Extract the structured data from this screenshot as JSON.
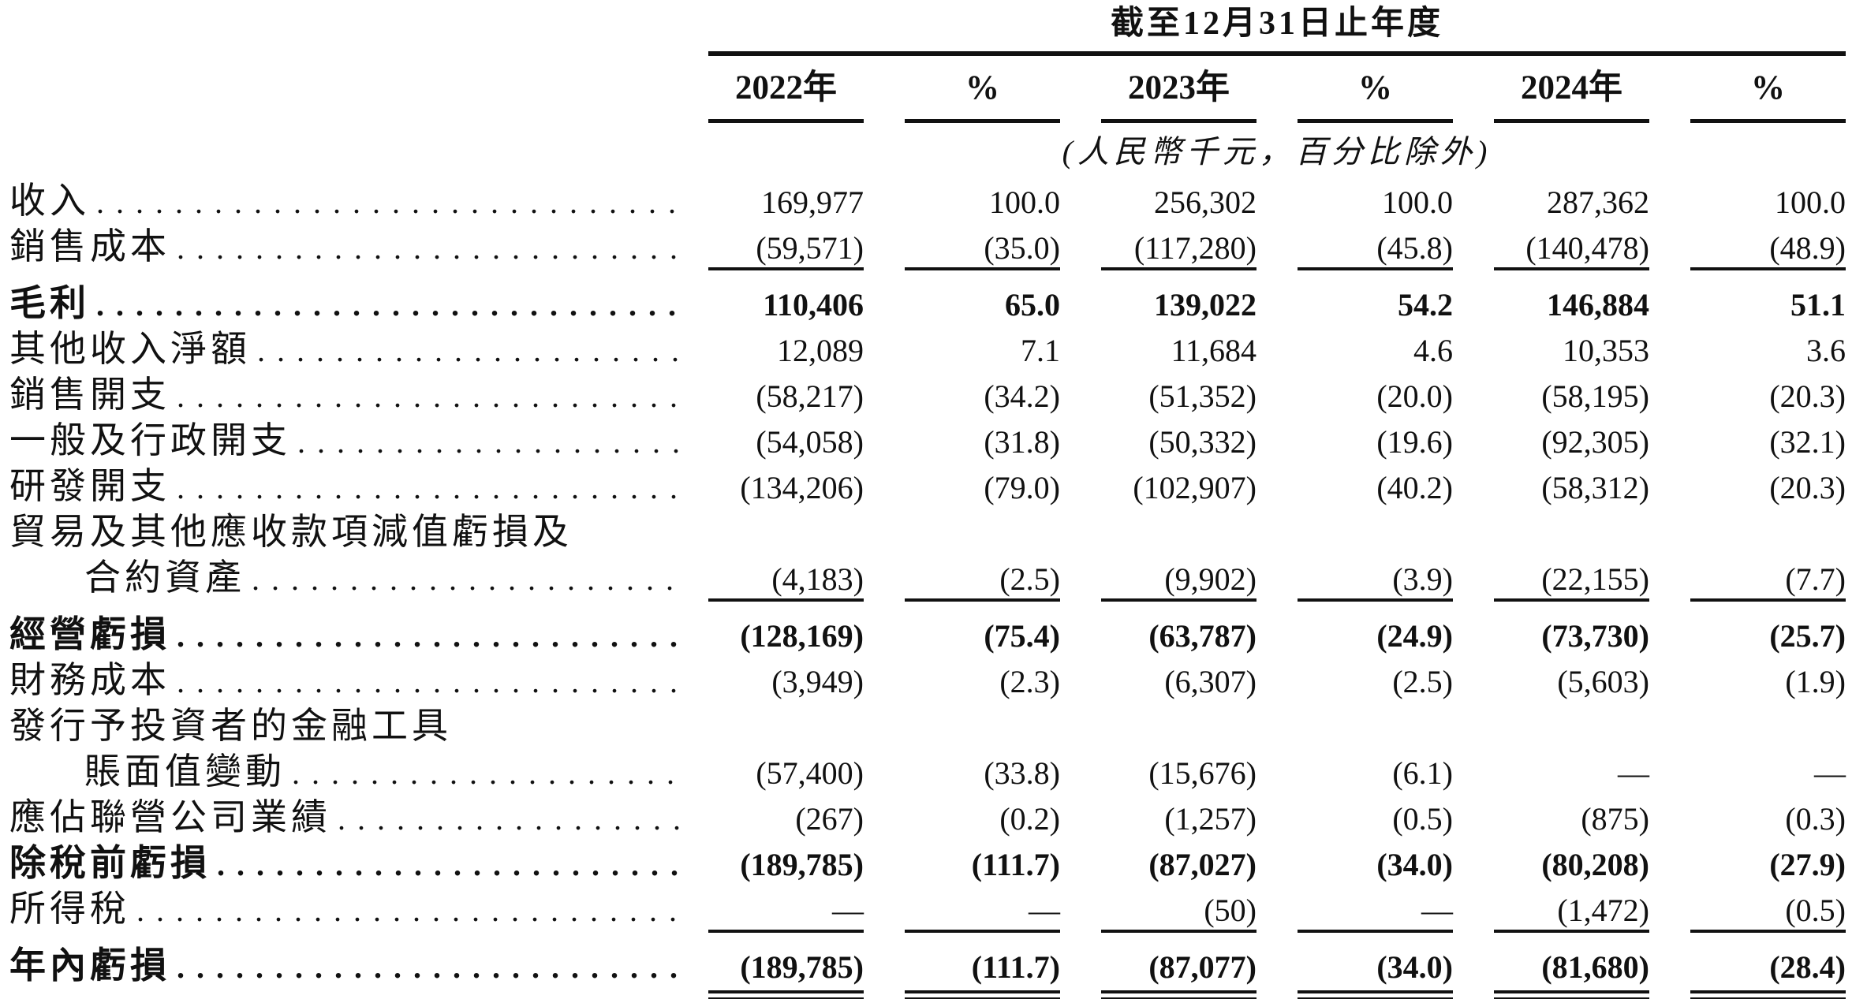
{
  "table": {
    "period_header": "截至12月31日止年度",
    "unit_note": "(人民幣千元，百分比除外)",
    "columns": [
      "2022年",
      "%",
      "2023年",
      "%",
      "2024年",
      "%"
    ],
    "rows": [
      {
        "label": "收入",
        "values": [
          "169,977",
          "100.0",
          "256,302",
          "100.0",
          "287,362",
          "100.0"
        ]
      },
      {
        "label": "銷售成本",
        "values": [
          "(59,571)",
          "(35.0)",
          "(117,280)",
          "(45.8)",
          "(140,478)",
          "(48.9)"
        ],
        "underline": true
      },
      {
        "label": "毛利",
        "bold": true,
        "space_before": true,
        "values": [
          "110,406",
          "65.0",
          "139,022",
          "54.2",
          "146,884",
          "51.1"
        ]
      },
      {
        "label": "其他收入淨額",
        "values": [
          "12,089",
          "7.1",
          "11,684",
          "4.6",
          "10,353",
          "3.6"
        ]
      },
      {
        "label": "銷售開支",
        "values": [
          "(58,217)",
          "(34.2)",
          "(51,352)",
          "(20.0)",
          "(58,195)",
          "(20.3)"
        ]
      },
      {
        "label": "一般及行政開支",
        "values": [
          "(54,058)",
          "(31.8)",
          "(50,332)",
          "(19.6)",
          "(92,305)",
          "(32.1)"
        ]
      },
      {
        "label": "研發開支",
        "values": [
          "(134,206)",
          "(79.0)",
          "(102,907)",
          "(40.2)",
          "(58,312)",
          "(20.3)"
        ]
      },
      {
        "label": "貿易及其他應收款項減值虧損及",
        "no_dots": true,
        "values": []
      },
      {
        "label": "合約資產",
        "indent": true,
        "values": [
          "(4,183)",
          "(2.5)",
          "(9,902)",
          "(3.9)",
          "(22,155)",
          "(7.7)"
        ],
        "underline": true
      },
      {
        "label": "經營虧損",
        "bold": true,
        "space_before": true,
        "values": [
          "(128,169)",
          "(75.4)",
          "(63,787)",
          "(24.9)",
          "(73,730)",
          "(25.7)"
        ]
      },
      {
        "label": "財務成本",
        "values": [
          "(3,949)",
          "(2.3)",
          "(6,307)",
          "(2.5)",
          "(5,603)",
          "(1.9)"
        ]
      },
      {
        "label": "發行予投資者的金融工具",
        "no_dots": true,
        "values": []
      },
      {
        "label": "賬面值變動",
        "indent": true,
        "values": [
          "(57,400)",
          "(33.8)",
          "(15,676)",
          "(6.1)",
          "—",
          "—"
        ]
      },
      {
        "label": "應佔聯營公司業績",
        "values": [
          "(267)",
          "(0.2)",
          "(1,257)",
          "(0.5)",
          "(875)",
          "(0.3)"
        ]
      },
      {
        "label": "除稅前虧損",
        "bold": true,
        "values": [
          "(189,785)",
          "(111.7)",
          "(87,027)",
          "(34.0)",
          "(80,208)",
          "(27.9)"
        ]
      },
      {
        "label": "所得稅",
        "values": [
          "—",
          "—",
          "(50)",
          "—",
          "(1,472)",
          "(0.5)"
        ],
        "underline": true
      },
      {
        "label": "年內虧損",
        "bold": true,
        "space_before": true,
        "values": [
          "(189,785)",
          "(111.7)",
          "(87,077)",
          "(34.0)",
          "(81,680)",
          "(28.4)"
        ],
        "double_underline": true
      }
    ]
  }
}
